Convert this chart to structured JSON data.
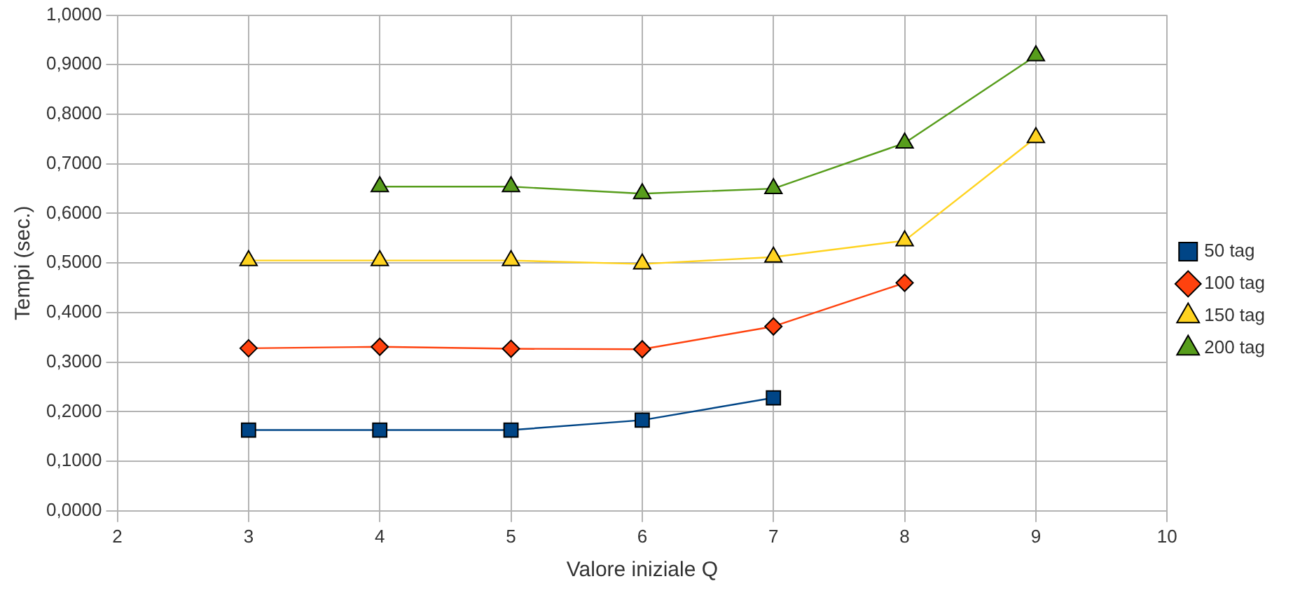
{
  "chart_data": {
    "type": "line",
    "xlabel": "Valore iniziale Q",
    "ylabel": "Tempi (sec.)",
    "xlim": [
      2,
      10
    ],
    "xticks": [
      2,
      3,
      4,
      5,
      6,
      7,
      8,
      9,
      10
    ],
    "ylim": [
      0,
      1
    ],
    "yticks": [
      {
        "value": 0,
        "label": "0,0000"
      },
      {
        "value": 0.1,
        "label": "0,1000"
      },
      {
        "value": 0.2,
        "label": "0,2000"
      },
      {
        "value": 0.3,
        "label": "0,3000"
      },
      {
        "value": 0.4,
        "label": "0,4000"
      },
      {
        "value": 0.5,
        "label": "0,5000"
      },
      {
        "value": 0.6,
        "label": "0,6000"
      },
      {
        "value": 0.7,
        "label": "0,7000"
      },
      {
        "value": 0.8,
        "label": "0,8000"
      },
      {
        "value": 0.9,
        "label": "0,9000"
      },
      {
        "value": 1,
        "label": "1,0000"
      }
    ],
    "grid": true,
    "legend": "right",
    "line_style": "solid",
    "series": [
      {
        "name": "50 tag",
        "color": "#004586",
        "marker": "square",
        "x": [
          3,
          4,
          5,
          6,
          7
        ],
        "values": [
          0.163,
          0.163,
          0.163,
          0.183,
          0.228
        ]
      },
      {
        "name": "100 tag",
        "color": "#ff420e",
        "marker": "diamond",
        "x": [
          3,
          4,
          5,
          6,
          7,
          8
        ],
        "values": [
          0.328,
          0.331,
          0.327,
          0.326,
          0.372,
          0.46
        ]
      },
      {
        "name": "150 tag",
        "color": "#ffd320",
        "marker": "triangle",
        "x": [
          3,
          4,
          5,
          6,
          7,
          8,
          9
        ],
        "values": [
          0.505,
          0.505,
          0.505,
          0.498,
          0.512,
          0.545,
          0.753
        ]
      },
      {
        "name": "200 tag",
        "color": "#579d1c",
        "marker": "triangle",
        "x": [
          4,
          5,
          6,
          7,
          8,
          9
        ],
        "values": [
          0.654,
          0.654,
          0.64,
          0.65,
          0.742,
          0.918
        ]
      }
    ]
  }
}
